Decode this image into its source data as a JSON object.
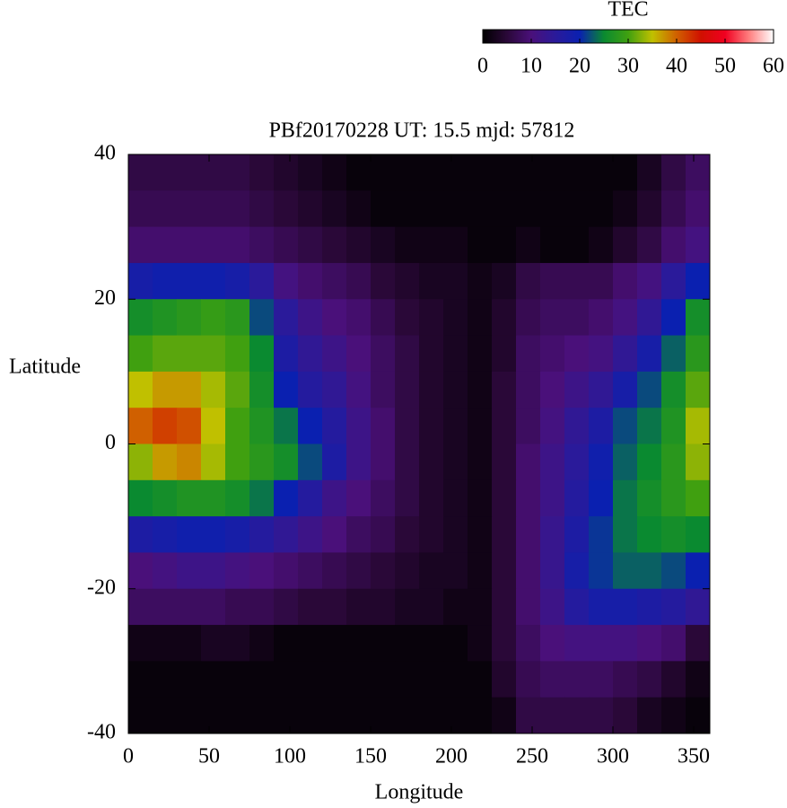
{
  "chart_data": {
    "type": "heatmap",
    "title": "PBf20170228  UT: 15.5  mjd: 57812",
    "xlabel": "Longitude",
    "ylabel": "Latitude",
    "colorbar_label": "TEC",
    "x": [
      7.5,
      22.5,
      37.5,
      52.5,
      67.5,
      82.5,
      97.5,
      112.5,
      127.5,
      142.5,
      157.5,
      172.5,
      187.5,
      202.5,
      217.5,
      232.5,
      247.5,
      262.5,
      277.5,
      292.5,
      307.5,
      322.5,
      337.5,
      352.5
    ],
    "y": [
      37.5,
      32.5,
      27.5,
      22.5,
      17.5,
      12.5,
      7.5,
      2.5,
      -2.5,
      -7.5,
      -12.5,
      -17.5,
      -22.5,
      -27.5,
      -32.5,
      -37.5
    ],
    "z": [
      [
        6,
        6,
        6,
        6,
        6,
        5,
        4,
        3,
        2,
        1,
        1,
        1,
        1,
        1,
        1,
        1,
        1,
        1,
        1,
        1,
        1,
        3,
        6,
        8
      ],
      [
        7,
        7,
        7,
        7,
        7,
        6,
        5,
        4,
        3,
        2,
        1,
        1,
        1,
        1,
        1,
        1,
        1,
        1,
        1,
        1,
        2,
        4,
        7,
        9
      ],
      [
        9,
        9,
        9,
        9,
        9,
        8,
        7,
        6,
        5,
        4,
        3,
        2,
        2,
        2,
        1,
        1,
        2,
        1,
        1,
        2,
        4,
        6,
        9,
        11
      ],
      [
        18,
        19,
        19,
        19,
        18,
        15,
        11,
        9,
        8,
        7,
        5,
        4,
        3,
        3,
        2,
        3,
        6,
        7,
        7,
        7,
        9,
        11,
        15,
        20
      ],
      [
        26,
        27,
        28,
        29,
        28,
        22,
        15,
        12,
        10,
        9,
        7,
        5,
        4,
        3,
        2,
        4,
        7,
        8,
        8,
        9,
        11,
        14,
        20,
        26
      ],
      [
        30,
        31,
        31,
        31,
        30,
        25,
        17,
        14,
        12,
        10,
        8,
        6,
        4,
        3,
        2,
        4,
        8,
        9,
        10,
        11,
        14,
        18,
        23,
        28
      ],
      [
        35,
        37,
        37,
        34,
        31,
        26,
        20,
        16,
        14,
        11,
        8,
        6,
        4,
        3,
        2,
        5,
        8,
        10,
        12,
        14,
        18,
        22,
        26,
        31
      ],
      [
        40,
        42,
        41,
        35,
        30,
        27,
        24,
        20,
        16,
        12,
        9,
        6,
        4,
        3,
        2,
        5,
        8,
        11,
        14,
        17,
        22,
        24,
        27,
        34
      ],
      [
        33,
        37,
        38,
        34,
        30,
        28,
        26,
        22,
        17,
        12,
        9,
        6,
        4,
        3,
        2,
        5,
        9,
        12,
        15,
        19,
        23,
        25,
        28,
        33
      ],
      [
        25,
        26,
        27,
        27,
        26,
        24,
        20,
        16,
        12,
        10,
        8,
        6,
        4,
        3,
        2,
        5,
        9,
        12,
        16,
        20,
        24,
        26,
        28,
        30
      ],
      [
        17,
        18,
        19,
        19,
        18,
        16,
        14,
        12,
        10,
        8,
        7,
        5,
        4,
        3,
        2,
        5,
        9,
        13,
        17,
        21,
        24,
        25,
        26,
        25
      ],
      [
        10,
        11,
        12,
        12,
        11,
        10,
        9,
        8,
        7,
        6,
        5,
        4,
        3,
        3,
        2,
        5,
        9,
        13,
        18,
        21,
        23,
        23,
        22,
        20
      ],
      [
        8,
        8,
        8,
        8,
        7,
        7,
        6,
        5,
        5,
        4,
        4,
        3,
        3,
        2,
        2,
        5,
        9,
        12,
        16,
        18,
        18,
        17,
        16,
        14
      ],
      [
        2,
        2,
        2,
        3,
        3,
        2,
        1,
        1,
        1,
        1,
        1,
        1,
        1,
        1,
        2,
        5,
        8,
        10,
        11,
        11,
        11,
        10,
        9,
        5
      ],
      [
        1,
        1,
        1,
        1,
        1,
        1,
        1,
        1,
        1,
        1,
        1,
        1,
        1,
        1,
        1,
        4,
        7,
        8,
        8,
        8,
        7,
        6,
        4,
        2
      ],
      [
        1,
        1,
        1,
        1,
        1,
        1,
        1,
        1,
        1,
        1,
        1,
        1,
        1,
        1,
        1,
        2,
        6,
        6,
        6,
        6,
        5,
        3,
        2,
        1
      ]
    ],
    "cell_width": 15,
    "cell_height": 5,
    "xlim": [
      0,
      360
    ],
    "xticks": [
      0,
      50,
      100,
      150,
      200,
      250,
      300,
      350
    ],
    "ylim": [
      -40,
      40
    ],
    "yticks": [
      -40,
      -20,
      0,
      20,
      40
    ],
    "zlim": [
      0,
      60
    ],
    "zticks": [
      0,
      10,
      20,
      30,
      40,
      50,
      60
    ],
    "colormap": [
      "#000000",
      "#2a0838",
      "#4a107a",
      "#2a1a9a",
      "#0a20b0",
      "#0a8a30",
      "#40a010",
      "#c0c000",
      "#d06000",
      "#d01000",
      "#f00020",
      "#ff8080",
      "#ffffff"
    ]
  }
}
